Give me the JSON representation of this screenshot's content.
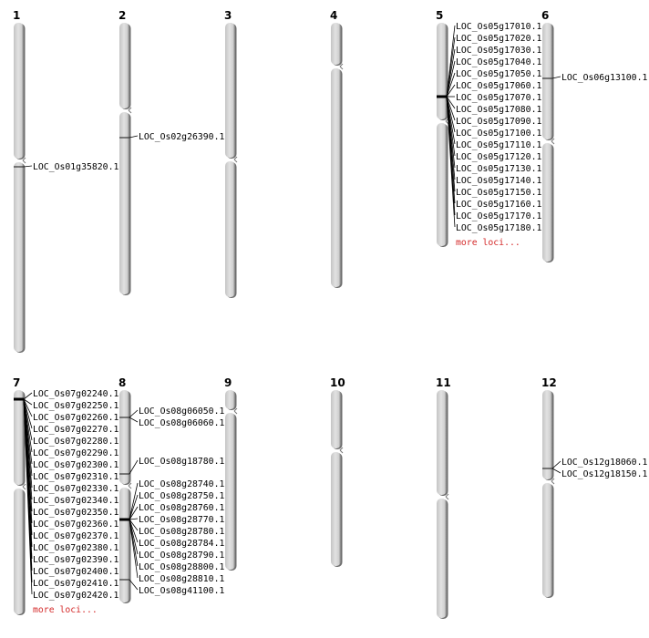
{
  "colors": {
    "chromosome": "#d4d4d4",
    "chromosome_shadow": "#6e6e6e",
    "marker": "#000000",
    "more_link": "#d42a2a"
  },
  "more_label": "more loci...",
  "chromosomes": [
    {
      "name": "1",
      "loci": [
        [
          "LOC_Os01g35820.1"
        ]
      ]
    },
    {
      "name": "2",
      "loci": [
        [
          "LOC_Os02g26390.1"
        ]
      ]
    },
    {
      "name": "3",
      "loci": []
    },
    {
      "name": "4",
      "loci": []
    },
    {
      "name": "5",
      "loci": [
        [
          "LOC_Os05g17010.1",
          "LOC_Os05g17020.1",
          "LOC_Os05g17030.1",
          "LOC_Os05g17040.1",
          "LOC_Os05g17050.1",
          "LOC_Os05g17060.1",
          "LOC_Os05g17070.1",
          "LOC_Os05g17080.1",
          "LOC_Os05g17090.1",
          "LOC_Os05g17100.1",
          "LOC_Os05g17110.1",
          "LOC_Os05g17120.1",
          "LOC_Os05g17130.1",
          "LOC_Os05g17140.1",
          "LOC_Os05g17150.1",
          "LOC_Os05g17160.1",
          "LOC_Os05g17170.1",
          "LOC_Os05g17180.1"
        ]
      ],
      "more": true
    },
    {
      "name": "6",
      "loci": [
        [
          "LOC_Os06g13100.1"
        ]
      ]
    },
    {
      "name": "7",
      "loci": [
        [
          "LOC_Os07g02240.1",
          "LOC_Os07g02250.1",
          "LOC_Os07g02260.1",
          "LOC_Os07g02270.1",
          "LOC_Os07g02280.1",
          "LOC_Os07g02290.1",
          "LOC_Os07g02300.1",
          "LOC_Os07g02310.1",
          "LOC_Os07g02330.1",
          "LOC_Os07g02340.1",
          "LOC_Os07g02350.1",
          "LOC_Os07g02360.1",
          "LOC_Os07g02370.1",
          "LOC_Os07g02380.1",
          "LOC_Os07g02390.1",
          "LOC_Os07g02400.1",
          "LOC_Os07g02410.1",
          "LOC_Os07g02420.1"
        ]
      ],
      "more": true
    },
    {
      "name": "8",
      "loci": [
        [
          "LOC_Os08g06050.1",
          "LOC_Os08g06060.1"
        ],
        [
          "LOC_Os08g18780.1"
        ],
        [
          "LOC_Os08g28740.1",
          "LOC_Os08g28750.1",
          "LOC_Os08g28760.1",
          "LOC_Os08g28770.1",
          "LOC_Os08g28780.1",
          "LOC_Os08g28784.1",
          "LOC_Os08g28790.1",
          "LOC_Os08g28800.1",
          "LOC_Os08g28810.1"
        ],
        [
          "LOC_Os08g41100.1"
        ]
      ]
    },
    {
      "name": "9",
      "loci": []
    },
    {
      "name": "10",
      "loci": []
    },
    {
      "name": "11",
      "loci": []
    },
    {
      "name": "12",
      "loci": [
        [
          "LOC_Os12g18060.1",
          "LOC_Os12g18150.1"
        ]
      ]
    }
  ]
}
